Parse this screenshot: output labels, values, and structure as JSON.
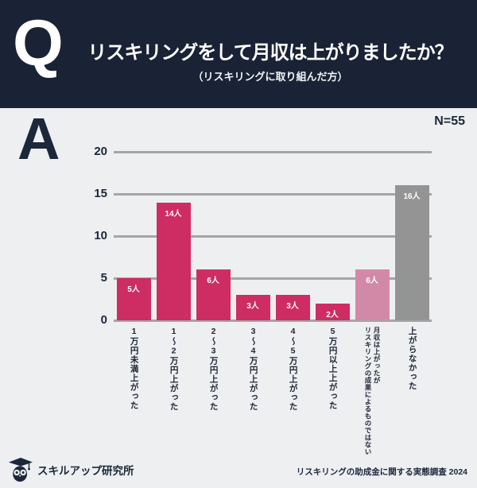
{
  "header": {
    "q_label": "Q",
    "title": "リスキリングをして月収は上がりましたか？",
    "subtitle": "（リスキリングに取り組んだ方）"
  },
  "answer": {
    "a_label": "A",
    "sample_size": "N=55"
  },
  "chart_data": {
    "type": "bar",
    "title": "リスキリングをして月収は上がりましたか？（リスキリングに取り組んだ方）",
    "categories": [
      "1万円未満上がった",
      "1～2万円上がった",
      "2～3万円上がった",
      "3～4万円上がった",
      "4～5万円上がった",
      "5万円以上上がった",
      "月収は上がったがリスキリングの成果によるものではない",
      "上がらなかった"
    ],
    "x_tick_lines": [
      [
        "1万円未満上がった"
      ],
      [
        "1～2万円上がった"
      ],
      [
        "2～3万円上がった"
      ],
      [
        "3～4万円上がった"
      ],
      [
        "4～5万円上がった"
      ],
      [
        "5万円以上上がった"
      ],
      [
        "月収は上がったが",
        "リスキリングの成果によるものではない"
      ],
      [
        "上がらなかった"
      ]
    ],
    "values": [
      5,
      14,
      6,
      3,
      3,
      2,
      6,
      16
    ],
    "bar_labels": [
      "5人",
      "14人",
      "6人",
      "3人",
      "3人",
      "2人",
      "6人",
      "16人"
    ],
    "bar_colors": [
      "#cd2d62",
      "#cd2d62",
      "#cd2d62",
      "#cd2d62",
      "#cd2d62",
      "#cd2d62",
      "#d289a8",
      "#949494"
    ],
    "yticks": [
      0,
      5,
      10,
      15,
      20
    ],
    "ylim": [
      0,
      20
    ],
    "xlabel": "",
    "ylabel": "",
    "grid": true,
    "legend": null,
    "sample_size": "N=55"
  },
  "footer": {
    "brand": "スキルアップ研究所",
    "source": "リスキリングの助成金に関する実態調査 2024"
  },
  "colors": {
    "header_navy": "#1a2335",
    "text_navy": "#1c2739",
    "background": "#edeff1",
    "bar_primary": "#cd2d62",
    "bar_muted_pink": "#d289a8",
    "bar_gray": "#949494",
    "gridline": "#a5a5a5",
    "bar_label_text": "#ffffff"
  }
}
